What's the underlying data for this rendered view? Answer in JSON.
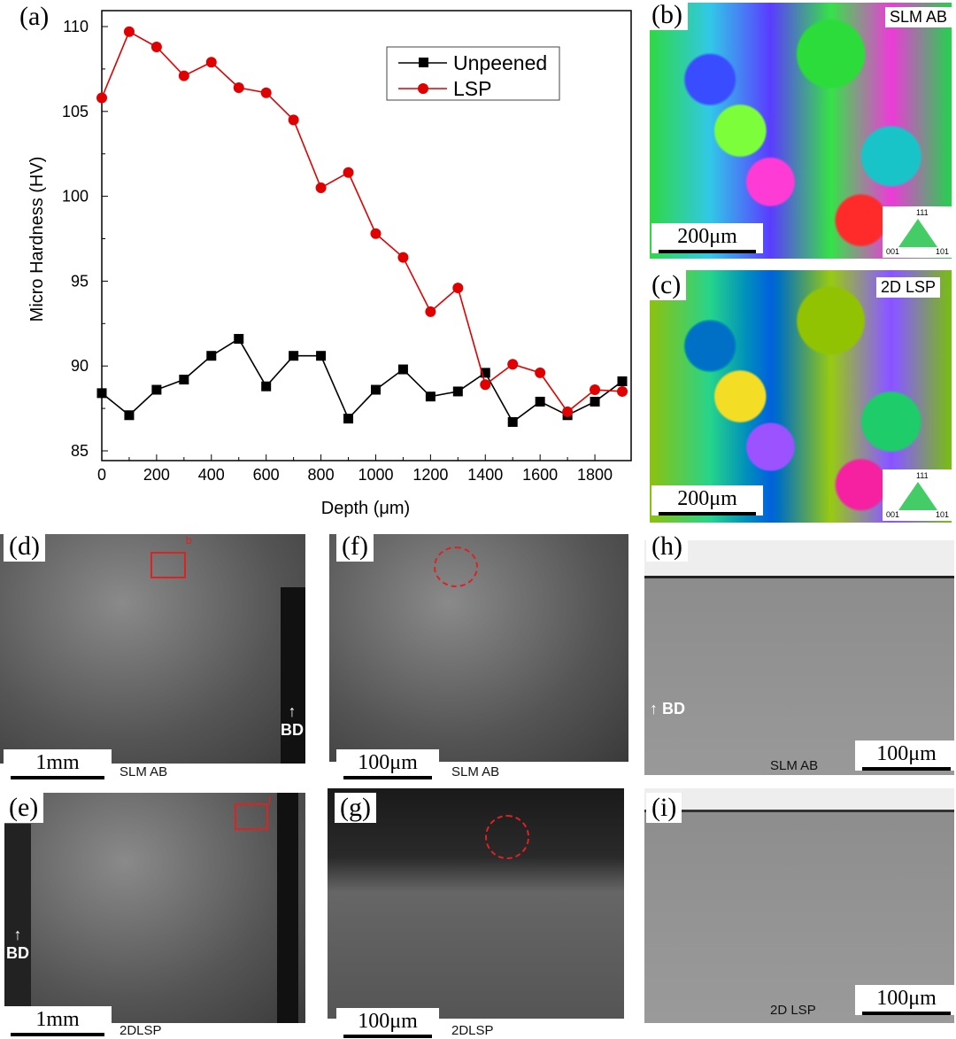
{
  "chart_data": {
    "type": "line",
    "panel_label": "(a)",
    "xlabel": "Depth (μm)",
    "ylabel": "Micro Hardness (HV)",
    "xlim": [
      0,
      1900
    ],
    "ylim": [
      85,
      110
    ],
    "xticks": [
      0,
      200,
      400,
      600,
      800,
      1000,
      1200,
      1400,
      1600,
      1800
    ],
    "yticks": [
      85,
      90,
      95,
      100,
      105,
      110
    ],
    "legend_position": "top-right",
    "x": [
      0,
      100,
      200,
      300,
      400,
      500,
      600,
      700,
      800,
      900,
      1000,
      1100,
      1200,
      1300,
      1400,
      1500,
      1600,
      1700,
      1800,
      1900
    ],
    "series": [
      {
        "name": "Unpeened",
        "color": "#000000",
        "marker": "square",
        "values": [
          88.4,
          87.1,
          88.6,
          89.2,
          90.6,
          91.6,
          88.8,
          90.6,
          90.6,
          86.9,
          88.6,
          89.8,
          88.2,
          88.5,
          89.6,
          86.7,
          87.9,
          87.1,
          87.9,
          89.1
        ]
      },
      {
        "name": "LSP",
        "color": "#e00000",
        "marker": "circle",
        "values": [
          105.8,
          109.7,
          108.8,
          107.1,
          107.9,
          106.4,
          106.1,
          104.5,
          100.5,
          101.4,
          97.8,
          96.4,
          93.2,
          94.6,
          88.9,
          90.1,
          89.6,
          87.3,
          88.6,
          88.5
        ]
      }
    ]
  },
  "panels": {
    "b": {
      "label": "(b)",
      "tag": "SLM AB",
      "scale": "200μm",
      "ipf": [
        "111",
        "001",
        "101"
      ]
    },
    "c": {
      "label": "(c)",
      "tag": "2D LSP",
      "scale": "200μm",
      "ipf": [
        "111",
        "001",
        "101"
      ]
    },
    "d": {
      "label": "(d)",
      "scale": "1mm",
      "caption": "SLM AB",
      "bd": "BD",
      "marker": "b"
    },
    "e": {
      "label": "(e)",
      "scale": "1mm",
      "caption": "2DLSP",
      "bd": "BD",
      "marker": "f"
    },
    "f": {
      "label": "(f)",
      "scale": "100μm",
      "caption": "SLM AB"
    },
    "g": {
      "label": "(g)",
      "scale": "100μm",
      "caption": "2DLSP"
    },
    "h": {
      "label": "(h)",
      "scale": "100μm",
      "caption": "SLM AB",
      "bd": "BD"
    },
    "i": {
      "label": "(i)",
      "scale": "100μm",
      "caption": "2D LSP"
    }
  }
}
